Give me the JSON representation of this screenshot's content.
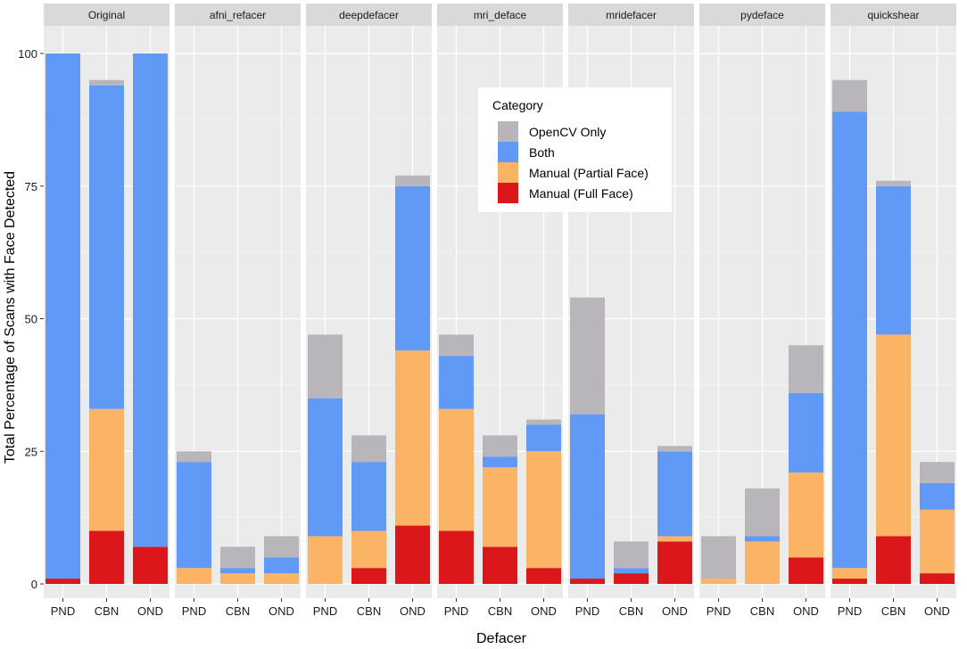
{
  "chart_data": {
    "type": "bar",
    "stacked": true,
    "facet_by": "Defacer",
    "title": "",
    "xlabel": "Defacer",
    "ylabel": "Total Percentage of Scans with Face Detected",
    "ylim": [
      0,
      104
    ],
    "yticks": [
      0,
      25,
      50,
      75,
      100
    ],
    "grid": true,
    "categories": [
      "PND",
      "CBN",
      "OND"
    ],
    "legend": {
      "title": "Category",
      "position": "inside-top-center",
      "entries": [
        {
          "key": "opencv_only",
          "label": "OpenCV Only",
          "color": "#b8b6ba"
        },
        {
          "key": "both",
          "label": "Both",
          "color": "#6199f7"
        },
        {
          "key": "manual_partial",
          "label": "Manual (Partial Face)",
          "color": "#fbb466"
        },
        {
          "key": "manual_full",
          "label": "Manual (Full Face)",
          "color": "#dc171b"
        }
      ]
    },
    "stack_order_bottom_to_top": [
      "manual_full",
      "manual_partial",
      "both",
      "opencv_only"
    ],
    "panels": [
      {
        "defacer": "Original",
        "series": [
          {
            "name": "Manual (Full Face)",
            "values": [
              1,
              10,
              7
            ]
          },
          {
            "name": "Manual (Partial Face)",
            "values": [
              0,
              23,
              0
            ]
          },
          {
            "name": "Both",
            "values": [
              99,
              61,
              93
            ]
          },
          {
            "name": "OpenCV Only",
            "values": [
              0,
              1,
              0
            ]
          }
        ]
      },
      {
        "defacer": "afni_refacer",
        "series": [
          {
            "name": "Manual (Full Face)",
            "values": [
              0,
              0,
              0
            ]
          },
          {
            "name": "Manual (Partial Face)",
            "values": [
              3,
              2,
              2
            ]
          },
          {
            "name": "Both",
            "values": [
              20,
              1,
              3
            ]
          },
          {
            "name": "OpenCV Only",
            "values": [
              2,
              4,
              4
            ]
          }
        ]
      },
      {
        "defacer": "deepdefacer",
        "series": [
          {
            "name": "Manual (Full Face)",
            "values": [
              0,
              3,
              11
            ]
          },
          {
            "name": "Manual (Partial Face)",
            "values": [
              9,
              7,
              33
            ]
          },
          {
            "name": "Both",
            "values": [
              26,
              13,
              31
            ]
          },
          {
            "name": "OpenCV Only",
            "values": [
              12,
              5,
              2
            ]
          }
        ]
      },
      {
        "defacer": "mri_deface",
        "series": [
          {
            "name": "Manual (Full Face)",
            "values": [
              10,
              7,
              3
            ]
          },
          {
            "name": "Manual (Partial Face)",
            "values": [
              23,
              15,
              22
            ]
          },
          {
            "name": "Both",
            "values": [
              10,
              2,
              5
            ]
          },
          {
            "name": "OpenCV Only",
            "values": [
              4,
              4,
              1
            ]
          }
        ]
      },
      {
        "defacer": "mridefacer",
        "series": [
          {
            "name": "Manual (Full Face)",
            "values": [
              1,
              2,
              8
            ]
          },
          {
            "name": "Manual (Partial Face)",
            "values": [
              0,
              0,
              1
            ]
          },
          {
            "name": "Both",
            "values": [
              31,
              1,
              16
            ]
          },
          {
            "name": "OpenCV Only",
            "values": [
              22,
              5,
              1
            ]
          }
        ]
      },
      {
        "defacer": "pydeface",
        "series": [
          {
            "name": "Manual (Full Face)",
            "values": [
              0,
              0,
              5
            ]
          },
          {
            "name": "Manual (Partial Face)",
            "values": [
              1,
              8,
              16
            ]
          },
          {
            "name": "Both",
            "values": [
              0,
              1,
              15
            ]
          },
          {
            "name": "OpenCV Only",
            "values": [
              8,
              9,
              9
            ]
          }
        ]
      },
      {
        "defacer": "quickshear",
        "series": [
          {
            "name": "Manual (Full Face)",
            "values": [
              1,
              9,
              2
            ]
          },
          {
            "name": "Manual (Partial Face)",
            "values": [
              2,
              38,
              12
            ]
          },
          {
            "name": "Both",
            "values": [
              86,
              28,
              5
            ]
          },
          {
            "name": "OpenCV Only",
            "values": [
              6,
              1,
              4
            ]
          }
        ]
      }
    ]
  }
}
